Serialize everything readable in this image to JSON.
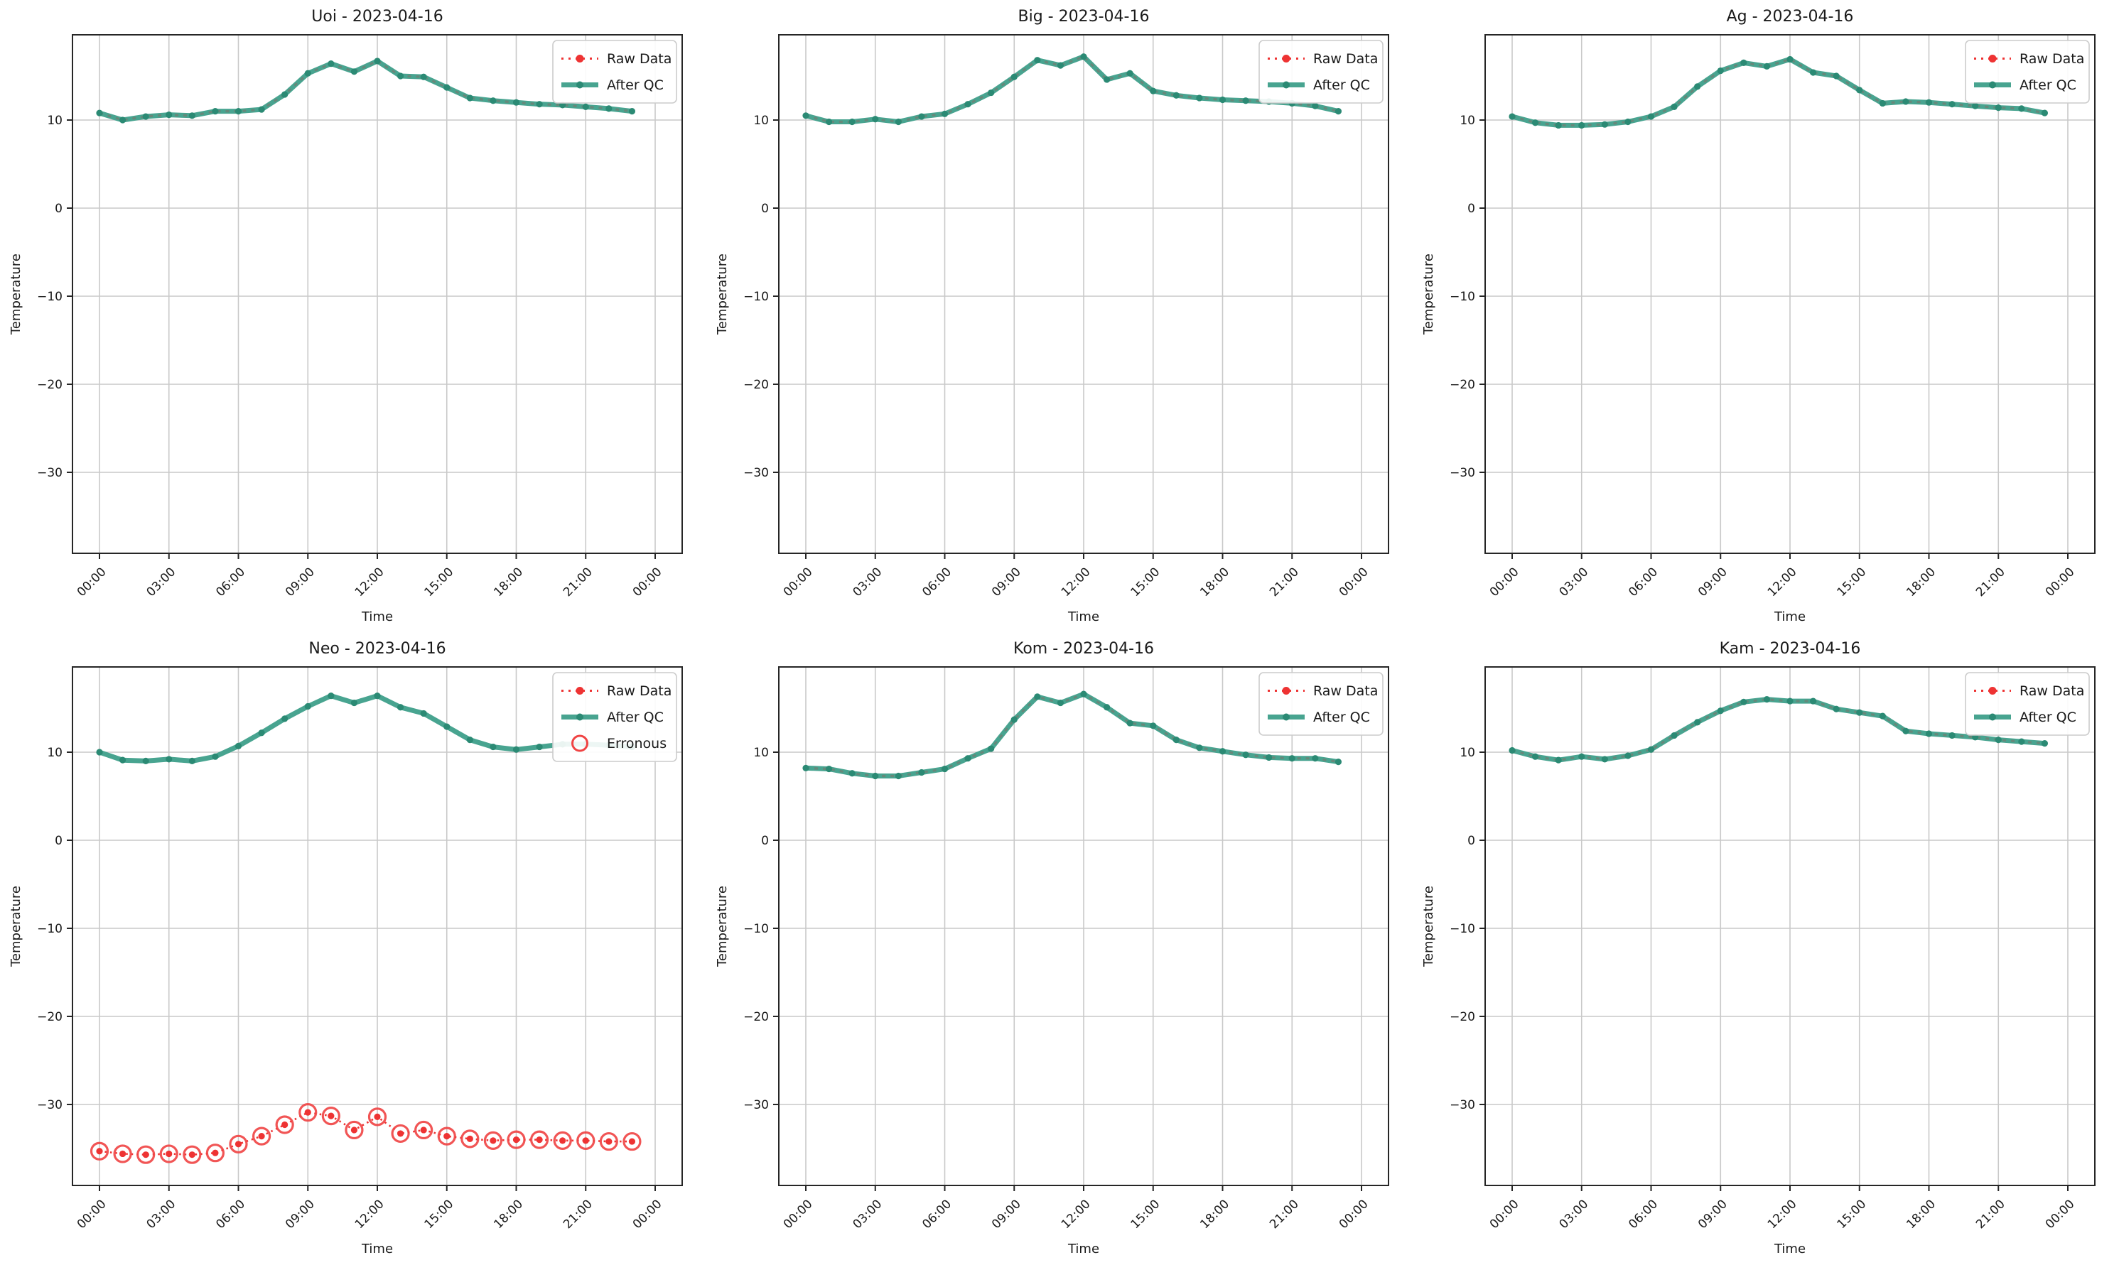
{
  "figure": {
    "kind": "temperature-qc-grid",
    "date": "2023-04-16",
    "rows": 2,
    "cols": 3
  },
  "axes": {
    "xlabel": "Time",
    "ylabel": "Temperature",
    "yticks": [
      10,
      0,
      -10,
      -20,
      -30
    ],
    "ytick_labels": [
      "10",
      "0",
      "−10",
      "−20",
      "−30"
    ],
    "xtick_labels": [
      "00:00",
      "03:00",
      "06:00",
      "09:00",
      "12:00",
      "15:00",
      "18:00",
      "21:00",
      "00:00"
    ],
    "ylim": [
      -39.2,
      19.7
    ],
    "grid": true
  },
  "legend": {
    "raw_label": "Raw Data",
    "qc_label": "After QC",
    "erronous_label": "Erronous",
    "position": "upper right"
  },
  "colors": {
    "qc_line": "#48a490",
    "qc_marker": "#2b8a74",
    "raw_overlap_dash": "#66887a",
    "raw_red": "#ee3333",
    "erronous_ring": "#f04343",
    "grid": "#c9c9c9",
    "spine": "#262626",
    "text": "#1a1a1a",
    "legend_border": "#cccccc",
    "background": "#ffffff"
  },
  "hours": [
    "00:00",
    "01:00",
    "02:00",
    "03:00",
    "04:00",
    "05:00",
    "06:00",
    "07:00",
    "08:00",
    "09:00",
    "10:00",
    "11:00",
    "12:00",
    "13:00",
    "14:00",
    "15:00",
    "16:00",
    "17:00",
    "18:00",
    "19:00",
    "20:00",
    "21:00",
    "22:00",
    "23:00"
  ],
  "chart_data": [
    {
      "type": "line",
      "title": "Uoi - 2023-04-16",
      "station": "Uoi",
      "xlabel": "Time",
      "ylabel": "Temperature",
      "ylim": [
        -39.2,
        19.7
      ],
      "legend_entries": [
        "Raw Data",
        "After QC"
      ],
      "erronous": false,
      "raw_same_as_qc": true,
      "series": [
        {
          "name": "Raw Data",
          "values": [
            10.8,
            10.0,
            10.4,
            10.6,
            10.5,
            11.0,
            11.0,
            11.2,
            12.9,
            15.3,
            16.4,
            15.5,
            16.7,
            15.0,
            14.9,
            13.7,
            12.5,
            12.2,
            12.0,
            11.8,
            11.7,
            11.5,
            11.3,
            11.0
          ]
        },
        {
          "name": "After QC",
          "values": [
            10.8,
            10.0,
            10.4,
            10.6,
            10.5,
            11.0,
            11.0,
            11.2,
            12.9,
            15.3,
            16.4,
            15.5,
            16.7,
            15.0,
            14.9,
            13.7,
            12.5,
            12.2,
            12.0,
            11.8,
            11.7,
            11.5,
            11.3,
            11.0
          ]
        }
      ]
    },
    {
      "type": "line",
      "title": "Big - 2023-04-16",
      "station": "Big",
      "xlabel": "Time",
      "ylabel": "Temperature",
      "ylim": [
        -39.2,
        19.7
      ],
      "legend_entries": [
        "Raw Data",
        "After QC"
      ],
      "erronous": false,
      "raw_same_as_qc": true,
      "series": [
        {
          "name": "Raw Data",
          "values": [
            10.5,
            9.8,
            9.8,
            10.1,
            9.8,
            10.4,
            10.7,
            11.8,
            13.1,
            14.9,
            16.8,
            16.2,
            17.2,
            14.6,
            15.3,
            13.3,
            12.8,
            12.5,
            12.3,
            12.2,
            12.1,
            11.9,
            11.6,
            11.0
          ]
        },
        {
          "name": "After QC",
          "values": [
            10.5,
            9.8,
            9.8,
            10.1,
            9.8,
            10.4,
            10.7,
            11.8,
            13.1,
            14.9,
            16.8,
            16.2,
            17.2,
            14.6,
            15.3,
            13.3,
            12.8,
            12.5,
            12.3,
            12.2,
            12.1,
            11.9,
            11.6,
            11.0
          ]
        }
      ]
    },
    {
      "type": "line",
      "title": "Ag - 2023-04-16",
      "station": "Ag",
      "xlabel": "Time",
      "ylabel": "Temperature",
      "ylim": [
        -39.2,
        19.7
      ],
      "legend_entries": [
        "Raw Data",
        "After QC"
      ],
      "erronous": false,
      "raw_same_as_qc": true,
      "series": [
        {
          "name": "Raw Data",
          "values": [
            10.4,
            9.7,
            9.4,
            9.4,
            9.5,
            9.8,
            10.4,
            11.5,
            13.8,
            15.6,
            16.5,
            16.1,
            16.9,
            15.4,
            15.0,
            13.4,
            11.9,
            12.1,
            12.0,
            11.8,
            11.6,
            11.4,
            11.3,
            10.8
          ]
        },
        {
          "name": "After QC",
          "values": [
            10.4,
            9.7,
            9.4,
            9.4,
            9.5,
            9.8,
            10.4,
            11.5,
            13.8,
            15.6,
            16.5,
            16.1,
            16.9,
            15.4,
            15.0,
            13.4,
            11.9,
            12.1,
            12.0,
            11.8,
            11.6,
            11.4,
            11.3,
            10.8
          ]
        }
      ]
    },
    {
      "type": "line",
      "title": "Neo - 2023-04-16",
      "station": "Neo",
      "xlabel": "Time",
      "ylabel": "Temperature",
      "ylim": [
        -39.2,
        19.7
      ],
      "legend_entries": [
        "Raw Data",
        "After QC",
        "Erronous"
      ],
      "erronous": true,
      "raw_same_as_qc": false,
      "series": [
        {
          "name": "Raw Data",
          "values": [
            -35.3,
            -35.6,
            -35.7,
            -35.6,
            -35.7,
            -35.5,
            -34.5,
            -33.6,
            -32.3,
            -30.9,
            -31.3,
            -32.9,
            -31.4,
            -33.3,
            -32.9,
            -33.6,
            -33.9,
            -34.1,
            -34.0,
            -34.0,
            -34.1,
            -34.1,
            -34.2,
            -34.2
          ]
        },
        {
          "name": "After QC",
          "values": [
            10.0,
            9.1,
            9.0,
            9.2,
            9.0,
            9.5,
            10.7,
            12.2,
            13.8,
            15.2,
            16.4,
            15.6,
            16.4,
            15.1,
            14.4,
            12.9,
            11.4,
            10.6,
            10.3,
            10.6,
            10.9,
            10.9,
            10.8,
            10.6
          ]
        },
        {
          "name": "Erronous",
          "values": [
            -35.3,
            -35.6,
            -35.7,
            -35.6,
            -35.7,
            -35.5,
            -34.5,
            -33.6,
            -32.3,
            -30.9,
            -31.3,
            -32.9,
            -31.4,
            -33.3,
            -32.9,
            -33.6,
            -33.9,
            -34.1,
            -34.0,
            -34.0,
            -34.1,
            -34.1,
            -34.2,
            -34.2
          ]
        }
      ]
    },
    {
      "type": "line",
      "title": "Kom - 2023-04-16",
      "station": "Kom",
      "xlabel": "Time",
      "ylabel": "Temperature",
      "ylim": [
        -39.2,
        19.7
      ],
      "legend_entries": [
        "Raw Data",
        "After QC"
      ],
      "erronous": false,
      "raw_same_as_qc": true,
      "series": [
        {
          "name": "Raw Data",
          "values": [
            8.2,
            8.1,
            7.6,
            7.3,
            7.3,
            7.7,
            8.1,
            9.3,
            10.4,
            13.7,
            16.3,
            15.6,
            16.6,
            15.1,
            13.3,
            13.0,
            11.4,
            10.5,
            10.1,
            9.7,
            9.4,
            9.3,
            9.3,
            8.9
          ]
        },
        {
          "name": "After QC",
          "values": [
            8.2,
            8.1,
            7.6,
            7.3,
            7.3,
            7.7,
            8.1,
            9.3,
            10.4,
            13.7,
            16.3,
            15.6,
            16.6,
            15.1,
            13.3,
            13.0,
            11.4,
            10.5,
            10.1,
            9.7,
            9.4,
            9.3,
            9.3,
            8.9
          ]
        }
      ]
    },
    {
      "type": "line",
      "title": "Kam - 2023-04-16",
      "station": "Kam",
      "xlabel": "Time",
      "ylabel": "Temperature",
      "ylim": [
        -39.2,
        19.7
      ],
      "legend_entries": [
        "Raw Data",
        "After QC"
      ],
      "erronous": false,
      "raw_same_as_qc": true,
      "series": [
        {
          "name": "Raw Data",
          "values": [
            10.2,
            9.5,
            9.1,
            9.5,
            9.2,
            9.6,
            10.3,
            11.9,
            13.4,
            14.7,
            15.7,
            16.0,
            15.8,
            15.8,
            14.9,
            14.5,
            14.1,
            12.4,
            12.1,
            11.9,
            11.7,
            11.4,
            11.2,
            11.0
          ]
        },
        {
          "name": "After QC",
          "values": [
            10.2,
            9.5,
            9.1,
            9.5,
            9.2,
            9.6,
            10.3,
            11.9,
            13.4,
            14.7,
            15.7,
            16.0,
            15.8,
            15.8,
            14.9,
            14.5,
            14.1,
            12.4,
            12.1,
            11.9,
            11.7,
            11.4,
            11.2,
            11.0
          ]
        }
      ]
    }
  ]
}
